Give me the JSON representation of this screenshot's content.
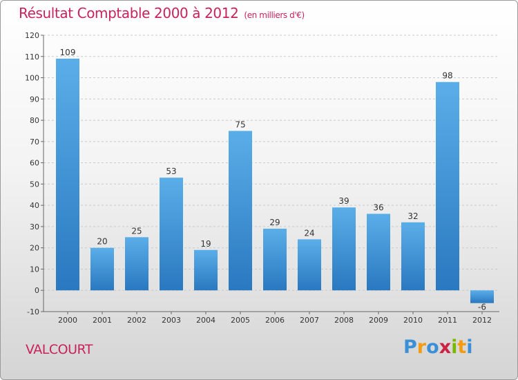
{
  "title": "Résultat Comptable 2000 à 2012",
  "unit_note": "(en milliers d'€)",
  "town": "VALCOURT",
  "logo": {
    "letters": [
      "P",
      "r",
      "o",
      "x",
      "i",
      "t",
      "i"
    ],
    "colors": [
      "#3a8fd6",
      "#f39c12",
      "#3a8fd6",
      "#cc2244",
      "#7ab800",
      "#f39c12",
      "#3a8fd6"
    ]
  },
  "colors": {
    "bar_top": "#5aaee8",
    "bar_bottom": "#2a78c0",
    "title": "#c8225a"
  },
  "chart_data": {
    "type": "bar",
    "title": "Résultat Comptable 2000 à 2012",
    "xlabel": "",
    "ylabel": "",
    "categories": [
      "2000",
      "2001",
      "2002",
      "2003",
      "2004",
      "2005",
      "2006",
      "2007",
      "2008",
      "2009",
      "2010",
      "2011",
      "2012"
    ],
    "values": [
      109,
      20,
      25,
      53,
      19,
      75,
      29,
      24,
      39,
      36,
      32,
      98,
      -6
    ],
    "ylim": [
      -10,
      120
    ],
    "yticks": [
      -10,
      0,
      10,
      20,
      30,
      40,
      50,
      60,
      70,
      80,
      90,
      100,
      110,
      120
    ],
    "grid": true
  }
}
